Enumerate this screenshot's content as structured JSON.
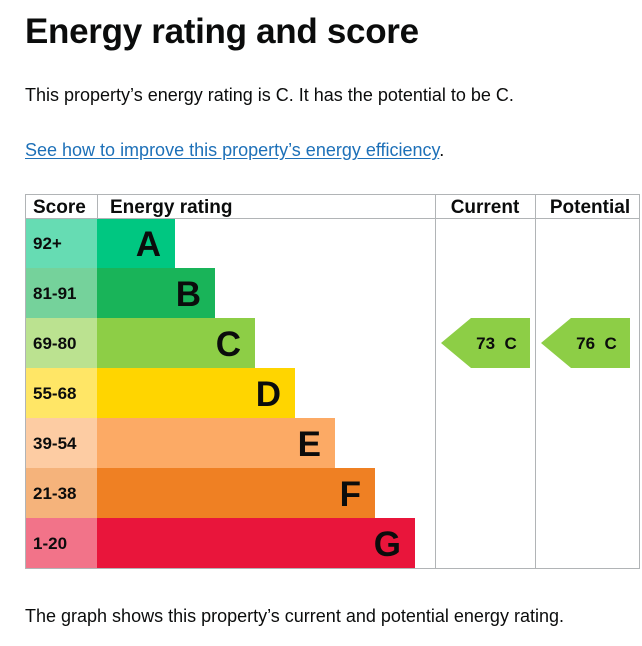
{
  "page": {
    "title": "Energy rating and score",
    "summary": "This property’s energy rating is C. It has the potential to be C.",
    "improve_link": "See how to improve this property’s energy efficiency",
    "improve_link_suffix": ".",
    "footer": "The graph shows this property’s current and potential energy rating."
  },
  "colors": {
    "link": "#1d70b8",
    "grid": "#b1b4b6",
    "text": "#0b0c0c"
  },
  "chart_data": {
    "type": "bar",
    "headers": {
      "score": "Score",
      "rating": "Energy rating",
      "current": "Current",
      "potential": "Potential"
    },
    "bands": [
      {
        "range": "92+",
        "letter": "A",
        "color": "#00c781",
        "score_color": "#66dcb3"
      },
      {
        "range": "81-91",
        "letter": "B",
        "color": "#19b459",
        "score_color": "#75d29b"
      },
      {
        "range": "69-80",
        "letter": "C",
        "color": "#8dce46",
        "score_color": "#bbe290"
      },
      {
        "range": "55-68",
        "letter": "D",
        "color": "#ffd500",
        "score_color": "#ffe666"
      },
      {
        "range": "39-54",
        "letter": "E",
        "color": "#fcaa65",
        "score_color": "#fdcca3"
      },
      {
        "range": "21-38",
        "letter": "F",
        "color": "#ef8023",
        "score_color": "#f5b37b"
      },
      {
        "range": "1-20",
        "letter": "G",
        "color": "#e9153b",
        "score_color": "#f27389"
      }
    ],
    "current": {
      "score": 73,
      "letter": "C",
      "label": "73  C"
    },
    "potential": {
      "score": 76,
      "letter": "C",
      "label": "76  C"
    }
  }
}
